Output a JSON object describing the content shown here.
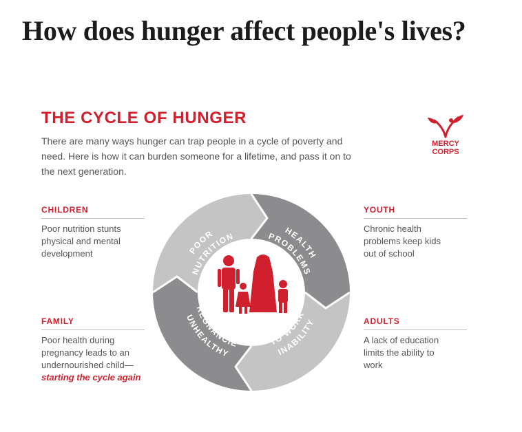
{
  "page_title": "How does hunger affect people's lives?",
  "infographic": {
    "title": "THE CYCLE OF HUNGER",
    "intro": "There are many ways hunger can trap people in a cycle of poverty and need. Here is how it can burden someone for a lifetime, and pass it on to the next generation.",
    "logo": {
      "line1": "MERCY",
      "line2": "CORPS"
    },
    "stages": [
      {
        "id": "children",
        "label": "CHILDREN",
        "desc": "Poor nutrition stunts physical and mental development"
      },
      {
        "id": "youth",
        "label": "YOUTH",
        "desc": "Chronic health problems keep kids out of school"
      },
      {
        "id": "family",
        "label": "FAMILY",
        "desc": "Poor health during pregnancy leads to an undernourished child—",
        "highlight": "starting the cycle again"
      },
      {
        "id": "adults",
        "label": "ADULTS",
        "desc": "A lack of education limits the ability to work"
      }
    ],
    "cycle_segments": [
      {
        "id": "poor-nutrition",
        "line1": "POOR",
        "line2": "NUTRITION",
        "color": "#c4c4c4"
      },
      {
        "id": "health-problems",
        "line1": "HEALTH",
        "line2": "PROBLEMS",
        "color": "#8c8c8e"
      },
      {
        "id": "inability-to-work",
        "line1": "INABILITY",
        "line2": "TO WORK",
        "color": "#c4c4c4"
      },
      {
        "id": "unhealthy-pregnancies",
        "line1": "UNHEALTHY",
        "line2": "PREGNANCIES",
        "color": "#8c8c8e"
      }
    ],
    "colors": {
      "accent": "#d0202e",
      "light_gray": "#c4c4c4",
      "dark_gray": "#8c8c8e"
    }
  }
}
